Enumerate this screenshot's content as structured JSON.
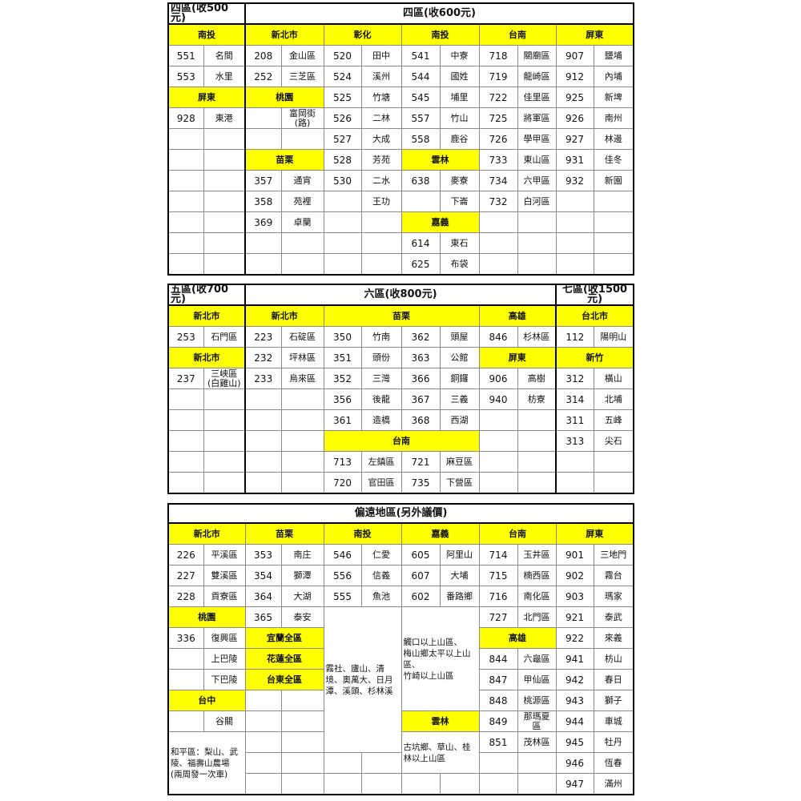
{
  "colors": {
    "header_bg": "#ffff00",
    "border": "#000000"
  },
  "tables": [
    {
      "title_cells": [
        {
          "t": "四區(收500元)",
          "cs": 2
        },
        {
          "t": "四區(收600元)",
          "cs": 10
        }
      ],
      "rows": [
        [
          {
            "t": "南投",
            "h": 1,
            "cs": 2
          },
          {
            "t": "新北市",
            "h": 1,
            "cs": 2
          },
          {
            "t": "彰化",
            "h": 1,
            "cs": 2
          },
          {
            "t": "南投",
            "h": 1,
            "cs": 2
          },
          {
            "t": "台南",
            "h": 1,
            "cs": 2
          },
          {
            "t": "屏東",
            "h": 1,
            "cs": 2
          }
        ],
        [
          {
            "t": "551"
          },
          {
            "t": "名間"
          },
          {
            "t": "208"
          },
          {
            "t": "金山區"
          },
          {
            "t": "520"
          },
          {
            "t": "田中"
          },
          {
            "t": "541"
          },
          {
            "t": "中寮"
          },
          {
            "t": "718"
          },
          {
            "t": "關廟區"
          },
          {
            "t": "907"
          },
          {
            "t": "鹽埔"
          }
        ],
        [
          {
            "t": "553"
          },
          {
            "t": "水里"
          },
          {
            "t": "252"
          },
          {
            "t": "三芝區"
          },
          {
            "t": "524"
          },
          {
            "t": "溪州"
          },
          {
            "t": "544"
          },
          {
            "t": "國姓"
          },
          {
            "t": "719"
          },
          {
            "t": "龍崎區"
          },
          {
            "t": "912"
          },
          {
            "t": "內埔"
          }
        ],
        [
          {
            "t": "屏東",
            "h": 1,
            "cs": 2
          },
          {
            "t": "桃園",
            "h": 1,
            "cs": 2
          },
          {
            "t": "525"
          },
          {
            "t": "竹塘"
          },
          {
            "t": "545"
          },
          {
            "t": "埔里"
          },
          {
            "t": "722"
          },
          {
            "t": "佳里區"
          },
          {
            "t": "925"
          },
          {
            "t": "新埤"
          }
        ],
        [
          {
            "t": "928"
          },
          {
            "t": "東港"
          },
          {
            "t": ""
          },
          {
            "t": "富岡街\n(路)"
          },
          {
            "t": "526"
          },
          {
            "t": "二林"
          },
          {
            "t": "557"
          },
          {
            "t": "竹山"
          },
          {
            "t": "725"
          },
          {
            "t": "將軍區"
          },
          {
            "t": "926"
          },
          {
            "t": "南州"
          }
        ],
        [
          {
            "t": ""
          },
          {
            "t": ""
          },
          {
            "t": ""
          },
          {
            "t": ""
          },
          {
            "t": "527"
          },
          {
            "t": "大成"
          },
          {
            "t": "558"
          },
          {
            "t": "鹿谷"
          },
          {
            "t": "726"
          },
          {
            "t": "學甲區"
          },
          {
            "t": "927"
          },
          {
            "t": "林邊"
          }
        ],
        [
          {
            "t": ""
          },
          {
            "t": ""
          },
          {
            "t": "苗栗",
            "h": 1,
            "cs": 2
          },
          {
            "t": "528"
          },
          {
            "t": "芳苑"
          },
          {
            "t": "雲林",
            "h": 1,
            "cs": 2
          },
          {
            "t": "733"
          },
          {
            "t": "東山區"
          },
          {
            "t": "931"
          },
          {
            "t": "佳冬"
          }
        ],
        [
          {
            "t": ""
          },
          {
            "t": ""
          },
          {
            "t": "357"
          },
          {
            "t": "通宵"
          },
          {
            "t": "530"
          },
          {
            "t": "二水"
          },
          {
            "t": "638"
          },
          {
            "t": "麥寮"
          },
          {
            "t": "734"
          },
          {
            "t": "六甲區"
          },
          {
            "t": "932"
          },
          {
            "t": "新園"
          }
        ],
        [
          {
            "t": ""
          },
          {
            "t": ""
          },
          {
            "t": "358"
          },
          {
            "t": "苑裡"
          },
          {
            "t": ""
          },
          {
            "t": "王功"
          },
          {
            "t": ""
          },
          {
            "t": "下崙"
          },
          {
            "t": "732"
          },
          {
            "t": "白河區"
          },
          {
            "t": ""
          },
          {
            "t": ""
          }
        ],
        [
          {
            "t": ""
          },
          {
            "t": ""
          },
          {
            "t": "369"
          },
          {
            "t": "卓蘭"
          },
          {
            "t": ""
          },
          {
            "t": ""
          },
          {
            "t": "嘉義",
            "h": 1,
            "cs": 2
          },
          {
            "t": ""
          },
          {
            "t": ""
          },
          {
            "t": ""
          },
          {
            "t": ""
          }
        ],
        [
          {
            "t": ""
          },
          {
            "t": ""
          },
          {
            "t": ""
          },
          {
            "t": ""
          },
          {
            "t": ""
          },
          {
            "t": ""
          },
          {
            "t": "614"
          },
          {
            "t": "東石"
          },
          {
            "t": ""
          },
          {
            "t": ""
          },
          {
            "t": ""
          },
          {
            "t": ""
          }
        ],
        [
          {
            "t": ""
          },
          {
            "t": ""
          },
          {
            "t": ""
          },
          {
            "t": ""
          },
          {
            "t": ""
          },
          {
            "t": ""
          },
          {
            "t": "625"
          },
          {
            "t": "布袋"
          },
          {
            "t": ""
          },
          {
            "t": ""
          },
          {
            "t": ""
          },
          {
            "t": ""
          }
        ]
      ]
    },
    {
      "title_cells": [
        {
          "t": "五區(收700元)",
          "cs": 2
        },
        {
          "t": "六區(收800元)",
          "cs": 8
        },
        {
          "t": "七區(收1500元)",
          "cs": 2
        }
      ],
      "rows": [
        [
          {
            "t": "新北市",
            "h": 1,
            "cs": 2
          },
          {
            "t": "新北市",
            "h": 1,
            "cs": 2
          },
          {
            "t": "苗栗",
            "h": 1,
            "cs": 4
          },
          {
            "t": "高雄",
            "h": 1,
            "cs": 2
          },
          {
            "t": "台北市",
            "h": 1,
            "cs": 2
          }
        ],
        [
          {
            "t": "253"
          },
          {
            "t": "石門區"
          },
          {
            "t": "223"
          },
          {
            "t": "石碇區"
          },
          {
            "t": "350"
          },
          {
            "t": "竹南"
          },
          {
            "t": "362"
          },
          {
            "t": "頭屋"
          },
          {
            "t": "846"
          },
          {
            "t": "杉林區"
          },
          {
            "t": "112"
          },
          {
            "t": "陽明山"
          }
        ],
        [
          {
            "t": "新北市",
            "h": 1,
            "cs": 2
          },
          {
            "t": "232"
          },
          {
            "t": "坪林區"
          },
          {
            "t": "351"
          },
          {
            "t": "頭份"
          },
          {
            "t": "363"
          },
          {
            "t": "公館"
          },
          {
            "t": "屏東",
            "h": 1,
            "cs": 2
          },
          {
            "t": "新竹",
            "h": 1,
            "cs": 2
          }
        ],
        [
          {
            "t": "237"
          },
          {
            "t": "三峽區\n(白雞山)"
          },
          {
            "t": "233"
          },
          {
            "t": "烏來區"
          },
          {
            "t": "352"
          },
          {
            "t": "三灣"
          },
          {
            "t": "366"
          },
          {
            "t": "銅鑼"
          },
          {
            "t": "906"
          },
          {
            "t": "高樹"
          },
          {
            "t": "312"
          },
          {
            "t": "橫山"
          }
        ],
        [
          {
            "t": ""
          },
          {
            "t": ""
          },
          {
            "t": ""
          },
          {
            "t": ""
          },
          {
            "t": "356"
          },
          {
            "t": "後龍"
          },
          {
            "t": "367"
          },
          {
            "t": "三義"
          },
          {
            "t": "940"
          },
          {
            "t": "枋寮"
          },
          {
            "t": "314"
          },
          {
            "t": "北埔"
          }
        ],
        [
          {
            "t": ""
          },
          {
            "t": ""
          },
          {
            "t": ""
          },
          {
            "t": ""
          },
          {
            "t": "361"
          },
          {
            "t": "造橋"
          },
          {
            "t": "368"
          },
          {
            "t": "西湖"
          },
          {
            "t": ""
          },
          {
            "t": ""
          },
          {
            "t": "311"
          },
          {
            "t": "五峰"
          }
        ],
        [
          {
            "t": ""
          },
          {
            "t": ""
          },
          {
            "t": ""
          },
          {
            "t": ""
          },
          {
            "t": "台南",
            "h": 1,
            "cs": 4
          },
          {
            "t": ""
          },
          {
            "t": ""
          },
          {
            "t": "313"
          },
          {
            "t": "尖石"
          }
        ],
        [
          {
            "t": ""
          },
          {
            "t": ""
          },
          {
            "t": ""
          },
          {
            "t": ""
          },
          {
            "t": "713"
          },
          {
            "t": "左鎮區"
          },
          {
            "t": "721"
          },
          {
            "t": "麻豆區"
          },
          {
            "t": ""
          },
          {
            "t": ""
          },
          {
            "t": ""
          },
          {
            "t": ""
          }
        ],
        [
          {
            "t": ""
          },
          {
            "t": ""
          },
          {
            "t": ""
          },
          {
            "t": ""
          },
          {
            "t": "720"
          },
          {
            "t": "官田區"
          },
          {
            "t": "735"
          },
          {
            "t": "下營區"
          },
          {
            "t": ""
          },
          {
            "t": ""
          },
          {
            "t": ""
          },
          {
            "t": ""
          }
        ]
      ]
    },
    {
      "title_cells": [
        {
          "t": "偏遠地區(另外議價)",
          "cs": 12
        }
      ],
      "rows": [
        [
          {
            "t": "新北市",
            "h": 1,
            "cs": 2
          },
          {
            "t": "苗栗",
            "h": 1,
            "cs": 2
          },
          {
            "t": "南投",
            "h": 1,
            "cs": 2
          },
          {
            "t": "嘉義",
            "h": 1,
            "cs": 2
          },
          {
            "t": "台南",
            "h": 1,
            "cs": 2
          },
          {
            "t": "屏東",
            "h": 1,
            "cs": 2
          }
        ],
        [
          {
            "t": "226"
          },
          {
            "t": "平溪區"
          },
          {
            "t": "353"
          },
          {
            "t": "南庄"
          },
          {
            "t": "546"
          },
          {
            "t": "仁愛"
          },
          {
            "t": "605"
          },
          {
            "t": "阿里山"
          },
          {
            "t": "714"
          },
          {
            "t": "玉井區"
          },
          {
            "t": "901"
          },
          {
            "t": "三地門"
          }
        ],
        [
          {
            "t": "227"
          },
          {
            "t": "雙溪區"
          },
          {
            "t": "354"
          },
          {
            "t": "獅潭"
          },
          {
            "t": "556"
          },
          {
            "t": "信義"
          },
          {
            "t": "607"
          },
          {
            "t": "大埔"
          },
          {
            "t": "715"
          },
          {
            "t": "楠西區"
          },
          {
            "t": "902"
          },
          {
            "t": "霧台"
          }
        ],
        [
          {
            "t": "228"
          },
          {
            "t": "貢寮區"
          },
          {
            "t": "364"
          },
          {
            "t": "大湖"
          },
          {
            "t": "555"
          },
          {
            "t": "魚池"
          },
          {
            "t": "602"
          },
          {
            "t": "番路鄉"
          },
          {
            "t": "716"
          },
          {
            "t": "南化區"
          },
          {
            "t": "903"
          },
          {
            "t": "瑪家"
          }
        ],
        [
          {
            "t": "桃園",
            "h": 1,
            "cs": 2
          },
          {
            "t": "365"
          },
          {
            "t": "泰安"
          },
          {
            "t": "霧社、廬山、清\n境、奧萬大、日月\n潭、溪頭、杉林溪",
            "cs": 2,
            "rs": 7,
            "n": 1
          },
          {
            "t": "觸口以上山區、\n梅山鄉太平以上山\n區、\n竹崎以上山區",
            "cs": 2,
            "rs": 5,
            "n": 1
          },
          {
            "t": "727"
          },
          {
            "t": "北門區"
          },
          {
            "t": "921"
          },
          {
            "t": "泰武"
          }
        ],
        [
          {
            "t": "336"
          },
          {
            "t": "復興區"
          },
          {
            "t": "宜蘭全區",
            "h": 1,
            "cs": 2
          },
          {
            "t": "高雄",
            "h": 1,
            "cs": 2
          },
          {
            "t": "922"
          },
          {
            "t": "來義"
          }
        ],
        [
          {
            "t": ""
          },
          {
            "t": "上巴陵"
          },
          {
            "t": "花蓮全區",
            "h": 1,
            "cs": 2
          },
          {
            "t": "844"
          },
          {
            "t": "六龜區"
          },
          {
            "t": "941"
          },
          {
            "t": "枋山"
          }
        ],
        [
          {
            "t": ""
          },
          {
            "t": "下巴陵"
          },
          {
            "t": "台東全區",
            "h": 1,
            "cs": 2
          },
          {
            "t": "847"
          },
          {
            "t": "甲仙區"
          },
          {
            "t": "942"
          },
          {
            "t": "春日"
          }
        ],
        [
          {
            "t": "台中",
            "h": 1,
            "cs": 2
          },
          {
            "t": ""
          },
          {
            "t": ""
          },
          {
            "t": "848"
          },
          {
            "t": "桃源區"
          },
          {
            "t": "943"
          },
          {
            "t": "獅子"
          }
        ],
        [
          {
            "t": ""
          },
          {
            "t": "谷關"
          },
          {
            "t": ""
          },
          {
            "t": ""
          },
          {
            "t": "雲林",
            "h": 1,
            "cs": 2
          },
          {
            "t": "849"
          },
          {
            "t": "那瑪夏區"
          },
          {
            "t": "944"
          },
          {
            "t": "車城"
          }
        ],
        [
          {
            "t": "和平區：梨山、武\n陵、福壽山農場\n(兩周發一次車)",
            "cs": 2,
            "rs": 3,
            "n": 1
          },
          {
            "t": ""
          },
          {
            "t": ""
          },
          {
            "t": "古坑鄉、草山、桂\n林以上山區",
            "cs": 2,
            "rs": 2,
            "n": 1
          },
          {
            "t": "851"
          },
          {
            "t": "茂林區"
          },
          {
            "t": "945"
          },
          {
            "t": "牡丹"
          }
        ],
        [
          {
            "t": ""
          },
          {
            "t": ""
          },
          {
            "t": ""
          },
          {
            "t": ""
          },
          {
            "t": ""
          },
          {
            "t": ""
          },
          {
            "t": "946"
          },
          {
            "t": "恆春"
          }
        ],
        [
          {
            "t": ""
          },
          {
            "t": ""
          },
          {
            "t": ""
          },
          {
            "t": ""
          },
          {
            "t": ""
          },
          {
            "t": ""
          },
          {
            "t": ""
          },
          {
            "t": ""
          },
          {
            "t": "947"
          },
          {
            "t": "滿州"
          }
        ]
      ]
    }
  ]
}
